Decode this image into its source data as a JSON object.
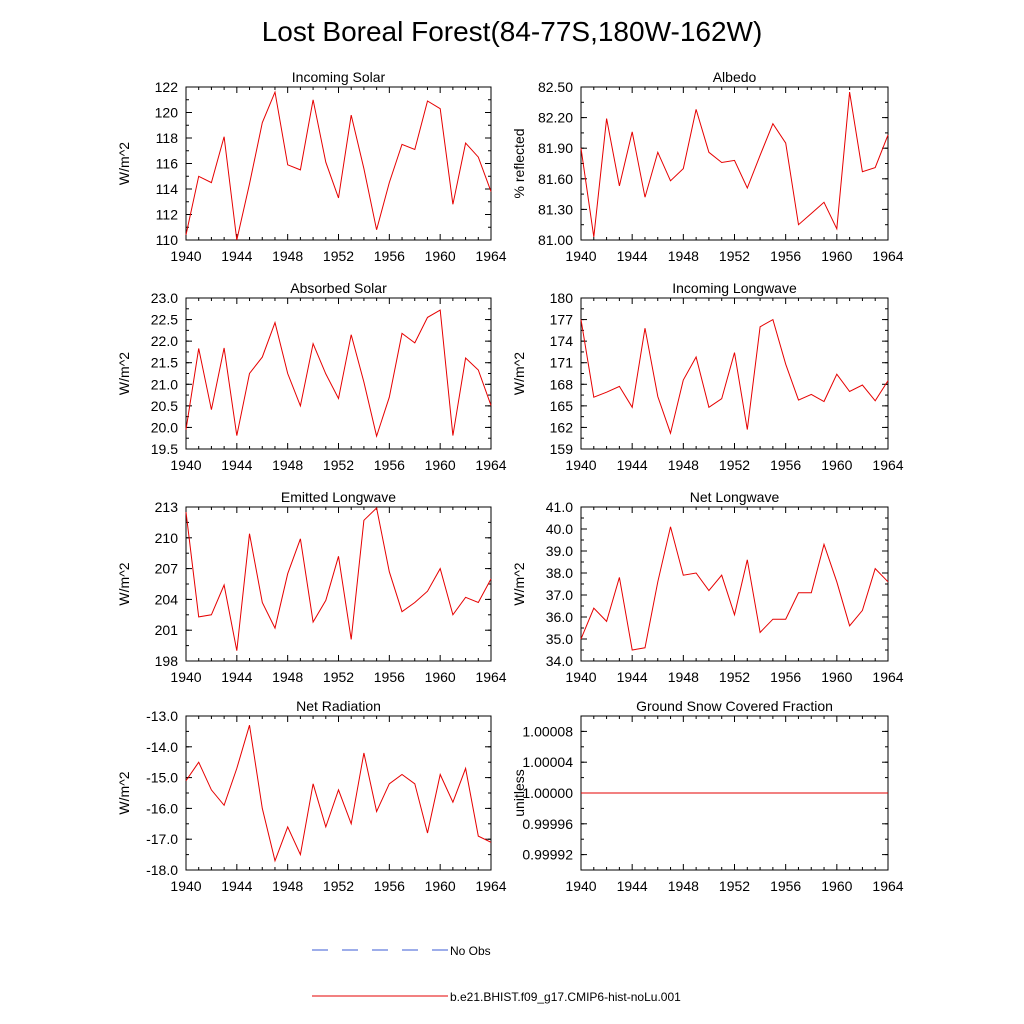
{
  "title": "Lost Boreal Forest(84-77S,180W-162W)",
  "legend": [
    {
      "label": "No Obs",
      "color": "#3b5bd6",
      "dash": true
    },
    {
      "label": "b.e21.BHIST.f09_g17.CMIP6-hist-noLu.001",
      "color": "#e60000",
      "dash": false
    }
  ],
  "chart_data": [
    {
      "type": "line",
      "title": "Incoming Solar",
      "ylabel": "W/m^2",
      "xlim": [
        1940,
        1964
      ],
      "ylim": [
        110,
        122
      ],
      "yticks": [
        "110",
        "112",
        "114",
        "116",
        "118",
        "120",
        "122"
      ],
      "xticks": [
        "1940",
        "1944",
        "1948",
        "1952",
        "1956",
        "1960",
        "1964"
      ],
      "x": [
        1940,
        1941,
        1942,
        1943,
        1944,
        1945,
        1946,
        1947,
        1948,
        1949,
        1950,
        1951,
        1952,
        1953,
        1954,
        1955,
        1956,
        1957,
        1958,
        1959,
        1960,
        1961,
        1962,
        1963,
        1964
      ],
      "series": [
        {
          "color": "#e60000",
          "values": [
            110.4,
            115.0,
            114.5,
            118.1,
            110.0,
            114.4,
            119.2,
            121.6,
            115.9,
            115.5,
            121.0,
            116.1,
            113.3,
            119.8,
            115.6,
            110.8,
            114.5,
            117.5,
            117.1,
            120.9,
            120.3,
            112.8,
            117.6,
            116.5,
            113.8
          ]
        }
      ]
    },
    {
      "type": "line",
      "title": "Albedo",
      "ylabel": "% reflected",
      "xlim": [
        1940,
        1964
      ],
      "ylim": [
        81.0,
        82.5
      ],
      "yticks": [
        "81.00",
        "81.30",
        "81.60",
        "81.90",
        "82.20",
        "82.50"
      ],
      "xticks": [
        "1940",
        "1944",
        "1948",
        "1952",
        "1956",
        "1960",
        "1964"
      ],
      "x": [
        1940,
        1941,
        1942,
        1943,
        1944,
        1945,
        1946,
        1947,
        1948,
        1949,
        1950,
        1951,
        1952,
        1953,
        1954,
        1955,
        1956,
        1957,
        1958,
        1959,
        1960,
        1961,
        1962,
        1963,
        1964
      ],
      "series": [
        {
          "color": "#e60000",
          "values": [
            81.9,
            81.03,
            82.19,
            81.53,
            82.06,
            81.42,
            81.86,
            81.58,
            81.7,
            82.28,
            81.86,
            81.76,
            81.78,
            81.51,
            81.83,
            82.14,
            81.95,
            81.15,
            81.26,
            81.37,
            81.11,
            82.45,
            81.67,
            81.71,
            82.03
          ]
        }
      ]
    },
    {
      "type": "line",
      "title": "Absorbed Solar",
      "ylabel": "W/m^2",
      "xlim": [
        1940,
        1964
      ],
      "ylim": [
        19.5,
        23.0
      ],
      "yticks": [
        "19.5",
        "20.0",
        "20.5",
        "21.0",
        "21.5",
        "22.0",
        "22.5",
        "23.0"
      ],
      "xticks": [
        "1940",
        "1944",
        "1948",
        "1952",
        "1956",
        "1960",
        "1964"
      ],
      "x": [
        1940,
        1941,
        1942,
        1943,
        1944,
        1945,
        1946,
        1947,
        1948,
        1949,
        1950,
        1951,
        1952,
        1953,
        1954,
        1955,
        1956,
        1957,
        1958,
        1959,
        1960,
        1961,
        1962,
        1963,
        1964
      ],
      "series": [
        {
          "color": "#e60000",
          "values": [
            19.95,
            21.83,
            20.41,
            21.84,
            19.81,
            21.25,
            21.63,
            22.43,
            21.25,
            20.5,
            21.94,
            21.24,
            20.67,
            22.15,
            21.05,
            19.8,
            20.7,
            22.18,
            21.96,
            22.55,
            22.72,
            19.81,
            21.61,
            21.33,
            20.51
          ]
        }
      ]
    },
    {
      "type": "line",
      "title": "Incoming Longwave",
      "ylabel": "W/m^2",
      "xlim": [
        1940,
        1964
      ],
      "ylim": [
        159,
        180
      ],
      "yticks": [
        "159",
        "162",
        "165",
        "168",
        "171",
        "174",
        "177",
        "180"
      ],
      "xticks": [
        "1940",
        "1944",
        "1948",
        "1952",
        "1956",
        "1960",
        "1964"
      ],
      "x": [
        1940,
        1941,
        1942,
        1943,
        1944,
        1945,
        1946,
        1947,
        1948,
        1949,
        1950,
        1951,
        1952,
        1953,
        1954,
        1955,
        1956,
        1957,
        1958,
        1959,
        1960,
        1961,
        1962,
        1963,
        1964
      ],
      "series": [
        {
          "color": "#e60000",
          "values": [
            177.0,
            166.2,
            166.9,
            167.7,
            164.8,
            175.8,
            166.3,
            161.2,
            168.6,
            171.8,
            164.8,
            166.0,
            172.4,
            161.7,
            176.0,
            177.0,
            170.8,
            165.8,
            166.6,
            165.6,
            169.4,
            167.0,
            167.9,
            165.7,
            168.5
          ]
        }
      ]
    },
    {
      "type": "line",
      "title": "Emitted Longwave",
      "ylabel": "W/m^2",
      "xlim": [
        1940,
        1964
      ],
      "ylim": [
        198,
        213
      ],
      "yticks": [
        "198",
        "201",
        "204",
        "207",
        "210",
        "213"
      ],
      "xticks": [
        "1940",
        "1944",
        "1948",
        "1952",
        "1956",
        "1960",
        "1964"
      ],
      "x": [
        1940,
        1941,
        1942,
        1943,
        1944,
        1945,
        1946,
        1947,
        1948,
        1949,
        1950,
        1951,
        1952,
        1953,
        1954,
        1955,
        1956,
        1957,
        1958,
        1959,
        1960,
        1961,
        1962,
        1963,
        1964
      ],
      "series": [
        {
          "color": "#e60000",
          "values": [
            212.5,
            202.3,
            202.5,
            205.4,
            199.0,
            210.4,
            203.7,
            201.2,
            206.5,
            209.9,
            201.8,
            203.9,
            208.2,
            200.1,
            211.7,
            212.9,
            206.7,
            202.8,
            203.7,
            204.8,
            207.0,
            202.5,
            204.2,
            203.7,
            206.0
          ]
        }
      ]
    },
    {
      "type": "line",
      "title": "Net Longwave",
      "ylabel": "W/m^2",
      "xlim": [
        1940,
        1964
      ],
      "ylim": [
        34.0,
        41.0
      ],
      "yticks": [
        "34.0",
        "35.0",
        "36.0",
        "37.0",
        "38.0",
        "39.0",
        "40.0",
        "41.0"
      ],
      "xticks": [
        "1940",
        "1944",
        "1948",
        "1952",
        "1956",
        "1960",
        "1964"
      ],
      "x": [
        1940,
        1941,
        1942,
        1943,
        1944,
        1945,
        1946,
        1947,
        1948,
        1949,
        1950,
        1951,
        1952,
        1953,
        1954,
        1955,
        1956,
        1957,
        1958,
        1959,
        1960,
        1961,
        1962,
        1963,
        1964
      ],
      "series": [
        {
          "color": "#e60000",
          "values": [
            35.0,
            36.4,
            35.8,
            37.8,
            34.5,
            34.6,
            37.6,
            40.1,
            37.9,
            38.0,
            37.2,
            37.9,
            36.1,
            38.6,
            35.3,
            35.9,
            35.9,
            37.1,
            37.1,
            39.3,
            37.6,
            35.6,
            36.3,
            38.2,
            37.6
          ]
        }
      ]
    },
    {
      "type": "line",
      "title": "Net Radiation",
      "ylabel": "W/m^2",
      "xlim": [
        1940,
        1964
      ],
      "ylim": [
        -18.0,
        -13.0
      ],
      "yticks": [
        "-18.0",
        "-17.0",
        "-16.0",
        "-15.0",
        "-14.0",
        "-13.0"
      ],
      "xticks": [
        "1940",
        "1944",
        "1948",
        "1952",
        "1956",
        "1960",
        "1964"
      ],
      "x": [
        1940,
        1941,
        1942,
        1943,
        1944,
        1945,
        1946,
        1947,
        1948,
        1949,
        1950,
        1951,
        1952,
        1953,
        1954,
        1955,
        1956,
        1957,
        1958,
        1959,
        1960,
        1961,
        1962,
        1963,
        1964
      ],
      "series": [
        {
          "color": "#e60000",
          "values": [
            -15.1,
            -14.5,
            -15.4,
            -15.9,
            -14.7,
            -13.3,
            -16.0,
            -17.7,
            -16.6,
            -17.5,
            -15.2,
            -16.6,
            -15.4,
            -16.5,
            -14.2,
            -16.1,
            -15.2,
            -14.9,
            -15.2,
            -16.8,
            -14.9,
            -15.8,
            -14.7,
            -16.9,
            -17.1
          ]
        }
      ]
    },
    {
      "type": "line",
      "title": "Ground Snow Covered Fraction",
      "ylabel": "unitless",
      "xlim": [
        1940,
        1964
      ],
      "ylim": [
        0.9999,
        1.0001
      ],
      "yticks": [
        "0.99992",
        "0.99996",
        "1.00000",
        "1.00004",
        "1.00008"
      ],
      "ytick_values": [
        0.99992,
        0.99996,
        1.0,
        1.00004,
        1.00008
      ],
      "xticks": [
        "1940",
        "1944",
        "1948",
        "1952",
        "1956",
        "1960",
        "1964"
      ],
      "x": [
        1940,
        1941,
        1942,
        1943,
        1944,
        1945,
        1946,
        1947,
        1948,
        1949,
        1950,
        1951,
        1952,
        1953,
        1954,
        1955,
        1956,
        1957,
        1958,
        1959,
        1960,
        1961,
        1962,
        1963,
        1964
      ],
      "series": [
        {
          "color": "#e60000",
          "values": [
            1,
            1,
            1,
            1,
            1,
            1,
            1,
            1,
            1,
            1,
            1,
            1,
            1,
            1,
            1,
            1,
            1,
            1,
            1,
            1,
            1,
            1,
            1,
            1,
            1
          ]
        }
      ]
    }
  ]
}
